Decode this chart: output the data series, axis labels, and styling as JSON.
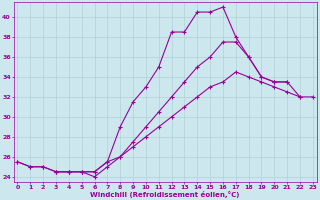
{
  "xlabel": "Windchill (Refroidissement éolien,°C)",
  "bg_color": "#cce8ee",
  "line_color": "#990099",
  "grid_color": "#aacccc",
  "xlim": [
    -0.3,
    23.3
  ],
  "ylim": [
    23.5,
    41.5
  ],
  "yticks": [
    24,
    26,
    28,
    30,
    32,
    34,
    36,
    38,
    40
  ],
  "xticks": [
    0,
    1,
    2,
    3,
    4,
    5,
    6,
    7,
    8,
    9,
    10,
    11,
    12,
    13,
    14,
    15,
    16,
    17,
    18,
    19,
    20,
    21,
    22,
    23
  ],
  "series1_x": [
    0,
    1,
    2,
    3,
    4,
    5,
    6,
    7,
    8,
    9,
    10,
    11,
    12,
    13,
    14,
    15,
    16,
    17,
    18,
    19,
    20,
    21
  ],
  "series1_y": [
    25.5,
    25.0,
    25.0,
    24.5,
    24.5,
    24.5,
    24.5,
    25.5,
    29.0,
    31.5,
    33.0,
    35.0,
    38.5,
    38.5,
    40.5,
    40.5,
    41.0,
    38.0,
    36.0,
    34.0,
    33.5,
    33.5
  ],
  "series2_x": [
    3,
    4,
    5,
    6,
    7,
    8,
    9,
    10,
    11,
    12,
    13,
    14,
    15,
    16,
    17,
    18,
    19,
    20,
    21,
    22
  ],
  "series2_y": [
    24.5,
    24.5,
    24.5,
    24.0,
    25.0,
    26.0,
    27.5,
    29.0,
    30.5,
    32.0,
    33.5,
    35.0,
    36.0,
    37.5,
    37.5,
    36.0,
    34.0,
    33.5,
    33.5,
    32.0
  ],
  "series3_x": [
    0,
    1,
    2,
    3,
    4,
    5,
    6,
    7,
    8,
    9,
    10,
    11,
    12,
    13,
    14,
    15,
    16,
    17,
    18,
    19,
    20,
    21,
    22,
    23
  ],
  "series3_y": [
    25.5,
    25.0,
    25.0,
    24.5,
    24.5,
    24.5,
    24.5,
    25.5,
    26.0,
    27.0,
    28.0,
    29.0,
    30.0,
    31.0,
    32.0,
    33.0,
    33.5,
    34.5,
    34.0,
    33.5,
    33.0,
    32.5,
    32.0,
    32.0
  ]
}
